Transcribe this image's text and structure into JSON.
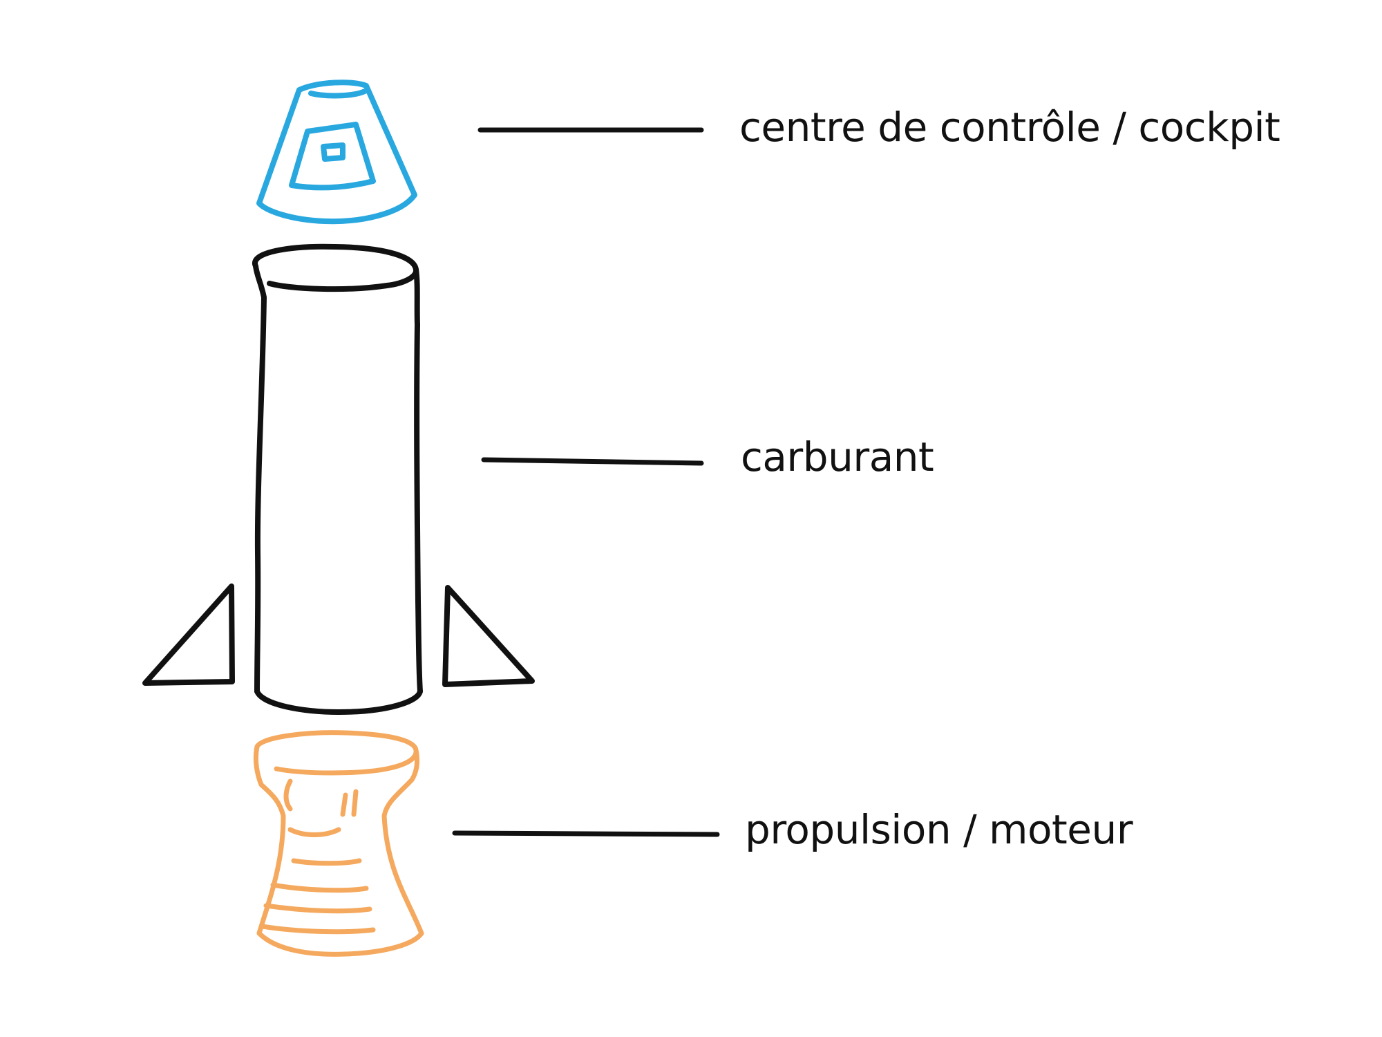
{
  "parts": [
    {
      "id": "cockpit",
      "label": "centre de contrôle / cockpit",
      "color": "#29a8e0"
    },
    {
      "id": "fuel",
      "label": "carburant",
      "color": "#111111"
    },
    {
      "id": "engine",
      "label": "propulsion / moteur",
      "color": "#f5a95e"
    }
  ]
}
